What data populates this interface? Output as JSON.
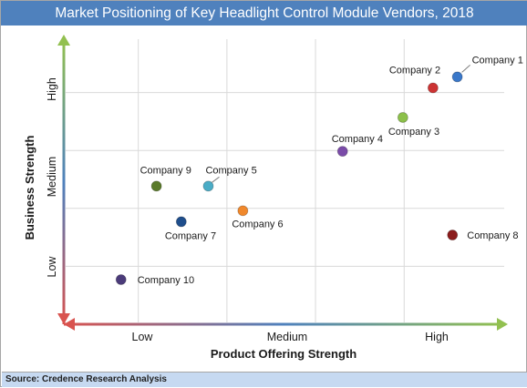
{
  "title": "Market Positioning of Key Headlight Control Module Vendors, 2018",
  "source": "Source: Credence Research Analysis",
  "chart_data": {
    "type": "scatter",
    "xlabel": "Product Offering Strength",
    "ylabel": "Business Strength",
    "x_tick_labels": [
      "Low",
      "Medium",
      "High"
    ],
    "y_tick_labels": [
      "Low",
      "Medium",
      "High"
    ],
    "xlim": [
      0,
      10
    ],
    "ylim": [
      0,
      10
    ],
    "grid": true,
    "points": [
      {
        "label": "Company 1",
        "x": 8.86,
        "y": 8.54,
        "color": "#3a78c9"
      },
      {
        "label": "Company 2",
        "x": 8.31,
        "y": 8.16,
        "color": "#cc3333"
      },
      {
        "label": "Company 3",
        "x": 7.63,
        "y": 7.14,
        "color": "#8cc04a"
      },
      {
        "label": "Company 4",
        "x": 6.27,
        "y": 5.97,
        "color": "#7a4ba8"
      },
      {
        "label": "Company 5",
        "x": 3.24,
        "y": 4.77,
        "color": "#4aacc6"
      },
      {
        "label": "Company 6",
        "x": 4.02,
        "y": 3.92,
        "color": "#f0882c"
      },
      {
        "label": "Company 7",
        "x": 2.63,
        "y": 3.54,
        "color": "#1f4e8c"
      },
      {
        "label": "Company 8",
        "x": 8.75,
        "y": 3.08,
        "color": "#8b1c1c"
      },
      {
        "label": "Company 9",
        "x": 2.07,
        "y": 4.77,
        "color": "#5a7a2a"
      },
      {
        "label": "Company 10",
        "x": 1.27,
        "y": 1.54,
        "color": "#4b3b7a"
      }
    ]
  }
}
